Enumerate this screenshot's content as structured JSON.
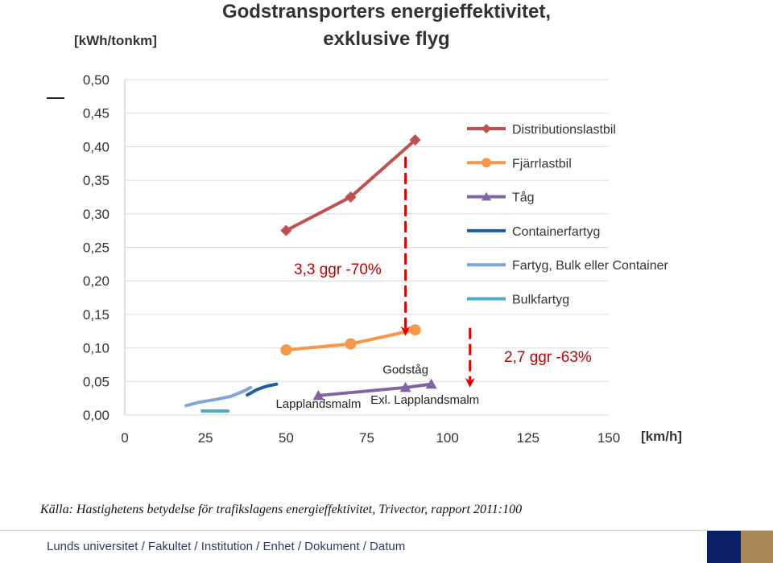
{
  "chart_data": {
    "type": "line",
    "title_lines": [
      "Godstransporters energieffektivitet,",
      "exklusive flyg"
    ],
    "ylabel": "[kWh/tonkm]",
    "xlabel": "[km/h]",
    "xlim": [
      0,
      150
    ],
    "ylim": [
      0,
      0.5
    ],
    "x_ticks": [
      0,
      25,
      50,
      75,
      100,
      125,
      150
    ],
    "x_tick_labels": [
      "0",
      "25",
      "50",
      "75",
      "100",
      "125",
      "150"
    ],
    "y_ticks": [
      0,
      0.05,
      0.1,
      0.15,
      0.2,
      0.25,
      0.3,
      0.35,
      0.4,
      0.45,
      0.5
    ],
    "y_tick_labels": [
      "0,00",
      "0,05",
      "0,10",
      "0,15",
      "0,20",
      "0,25",
      "0,30",
      "0,35",
      "0,40",
      "0,45",
      "0,50"
    ],
    "grid": true,
    "legend_position": "right",
    "series": [
      {
        "name": "Distributionslastbil",
        "color": "#c0504d",
        "marker": "diamond",
        "points": [
          [
            50,
            0.275
          ],
          [
            70,
            0.325
          ],
          [
            90,
            0.41
          ]
        ]
      },
      {
        "name": "Fjärrlastbil",
        "color": "#f79646",
        "marker": "circle",
        "points": [
          [
            50,
            0.097
          ],
          [
            70,
            0.106
          ],
          [
            90,
            0.127
          ]
        ]
      },
      {
        "name": "Tåg",
        "color": "#8064a2",
        "marker": "triangle",
        "points": [
          [
            60,
            0.029
          ],
          [
            87,
            0.041
          ],
          [
            95,
            0.046
          ]
        ]
      },
      {
        "name": "Containerfartyg",
        "color": "#1f5fa0",
        "marker": "none",
        "points": [
          [
            38,
            0.03
          ],
          [
            41,
            0.038
          ],
          [
            44,
            0.043
          ],
          [
            47,
            0.046
          ]
        ]
      },
      {
        "name": "Fartyg, Bulk eller Container",
        "color": "#7fa6d8",
        "marker": "none",
        "points": [
          [
            19,
            0.014
          ],
          [
            23,
            0.019
          ],
          [
            28,
            0.023
          ],
          [
            33,
            0.028
          ],
          [
            37,
            0.036
          ],
          [
            39,
            0.041
          ]
        ]
      },
      {
        "name": "Bulkfartyg",
        "color": "#4bacc6",
        "marker": "none",
        "points": [
          [
            24,
            0.006
          ],
          [
            32,
            0.006
          ]
        ]
      }
    ],
    "annotations": [
      {
        "text": "Godståg",
        "x": 87,
        "y": 0.062
      },
      {
        "text": "Lapplandsmalm",
        "x": 60,
        "y": 0.011
      },
      {
        "text": "Exl. Lapplandsmalm",
        "x": 93,
        "y": 0.017
      }
    ],
    "arrows": [
      {
        "text": "3,3 ggr -70%",
        "x": 87,
        "y_from": 0.385,
        "y_to": 0.125
      },
      {
        "text": "2,7 ggr -63%",
        "x": 107,
        "y_from": 0.13,
        "y_to": 0.048
      }
    ]
  },
  "source": "Källa: Hastighetens betydelse för trafikslagens energieffektivitet, Trivector, rapport 2011:100",
  "footer": "Lunds universitet / Fakultet / Institution / Enhet / Dokument / Datum"
}
